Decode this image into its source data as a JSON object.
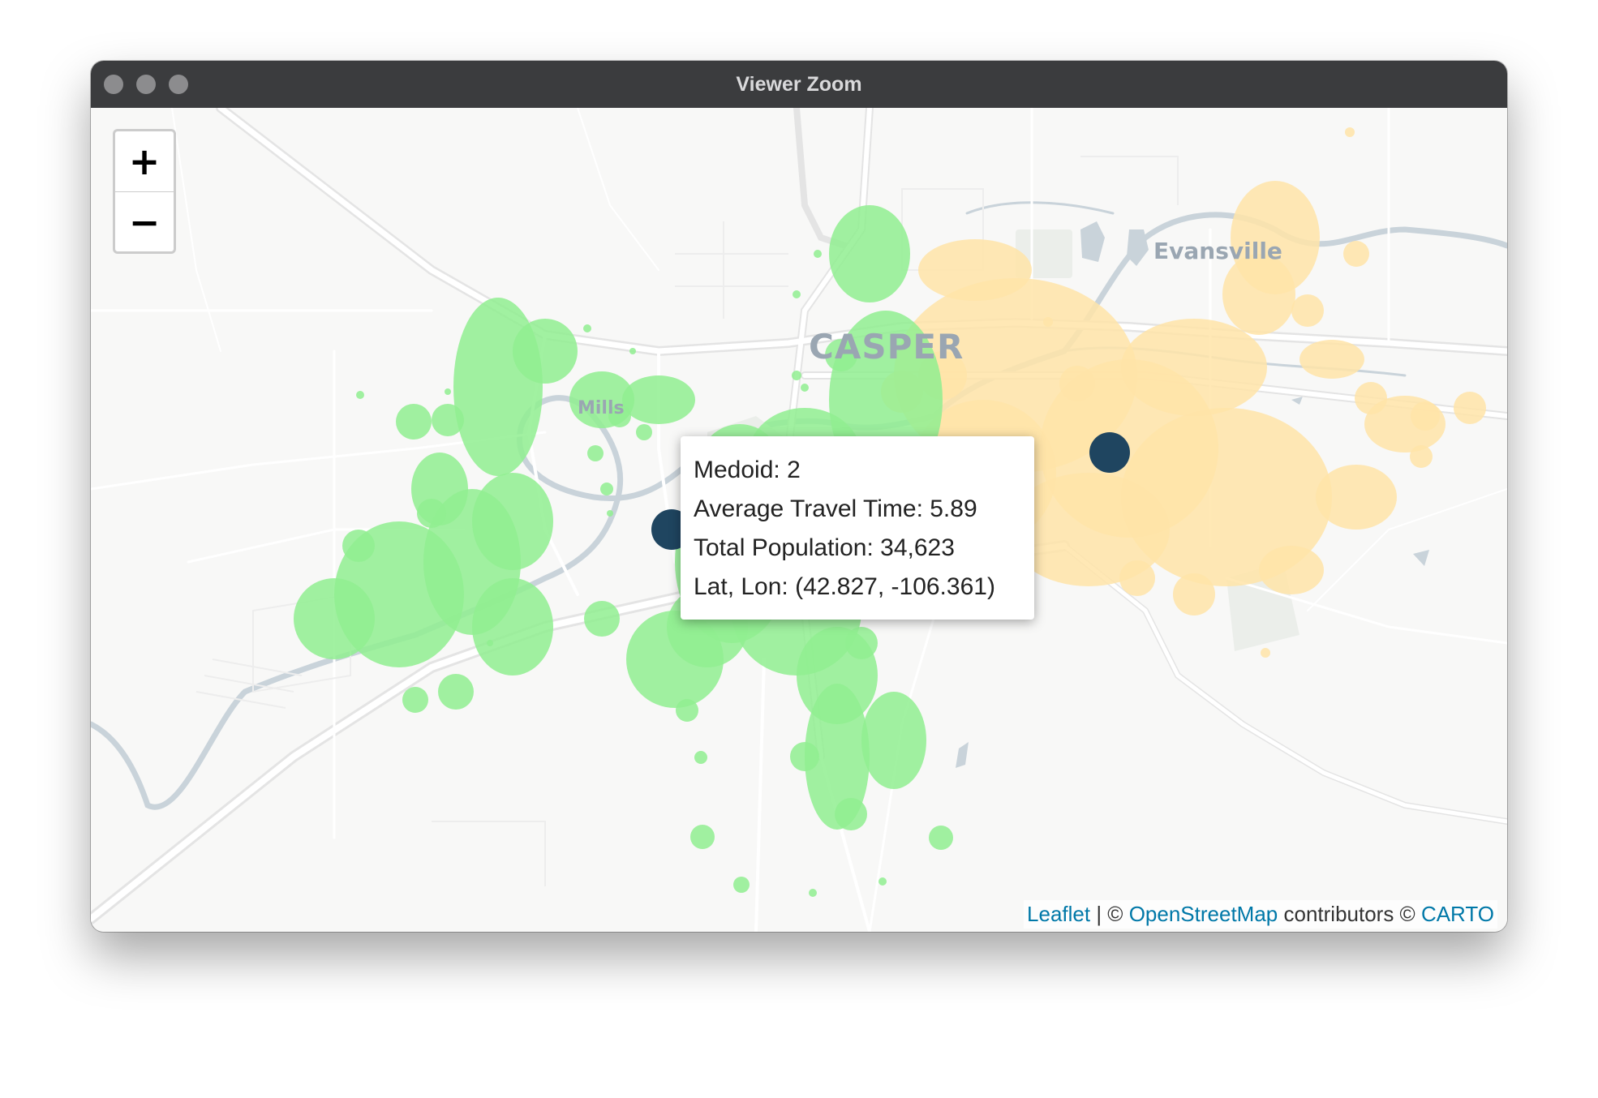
{
  "window": {
    "title": "Viewer Zoom"
  },
  "zoom": {
    "in_label": "+",
    "out_label": "−"
  },
  "places": {
    "city": "CASPER",
    "town": "Evansville",
    "small": "Mills"
  },
  "popup": {
    "medoid": "Medoid: 2",
    "travel_time": "Average Travel Time: 5.89",
    "population": "Total Population: 34,623",
    "latlon": "Lat, Lon: (42.827, -106.361)"
  },
  "attribution": {
    "leaflet": "Leaflet",
    "sep": " | © ",
    "osm": "OpenStreetMap",
    "contributors": " contributors © ",
    "carto": "CARTO"
  },
  "colors": {
    "cluster_green": "#90ee90",
    "cluster_yellow": "#ffe4a8",
    "medoid": "#1f4560",
    "road": "#ffffff",
    "water": "#c9d3da"
  }
}
